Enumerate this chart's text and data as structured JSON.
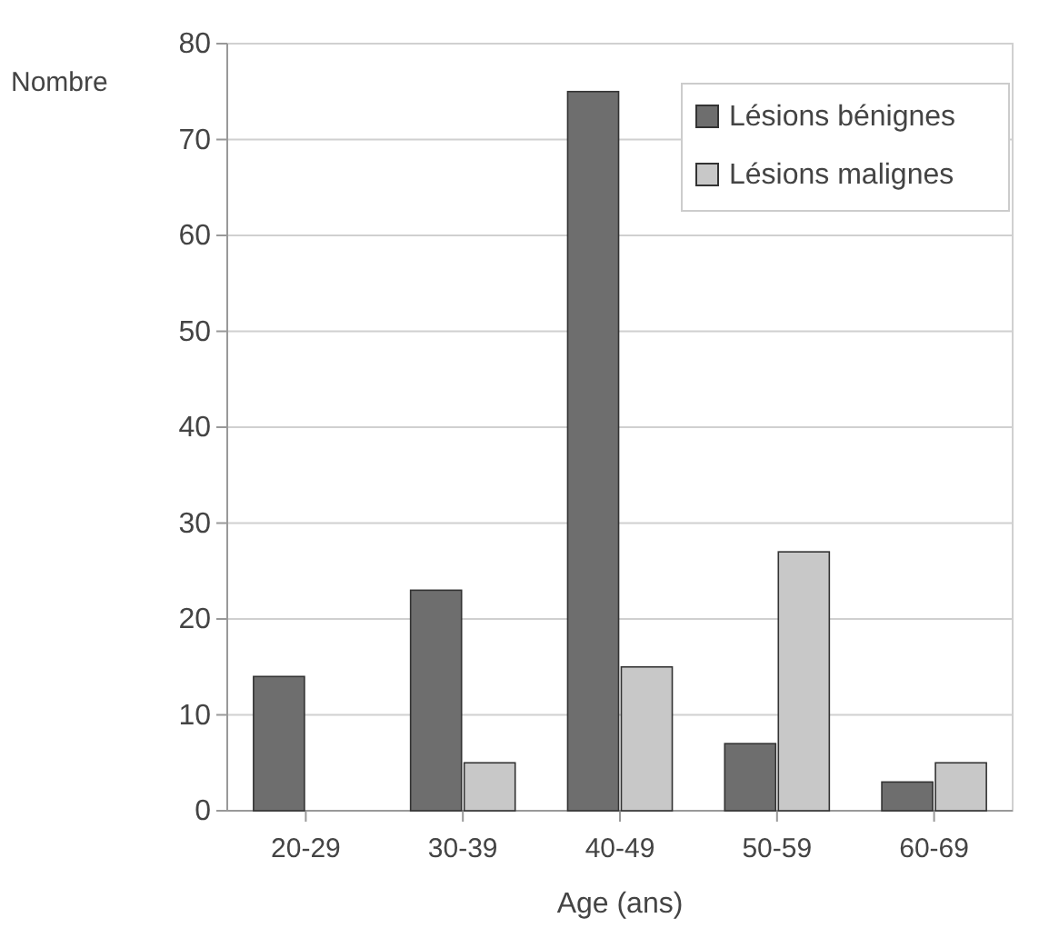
{
  "chart_data": {
    "type": "bar",
    "categories": [
      "20-29",
      "30-39",
      "40-49",
      "50-59",
      "60-69"
    ],
    "series": [
      {
        "name": "Lésions bénignes",
        "color": "#6e6e6e",
        "values": [
          14,
          23,
          75,
          7,
          3
        ]
      },
      {
        "name": "Lésions malignes",
        "color": "#c8c8c8",
        "values": [
          0,
          5,
          15,
          27,
          5
        ]
      }
    ],
    "ylabel": "Nombre",
    "xlabel": "Age (ans)",
    "ylim": [
      0,
      80
    ],
    "yticks": [
      0,
      10,
      20,
      30,
      40,
      50,
      60,
      70,
      80
    ],
    "grid": "y",
    "legend": "top right"
  }
}
